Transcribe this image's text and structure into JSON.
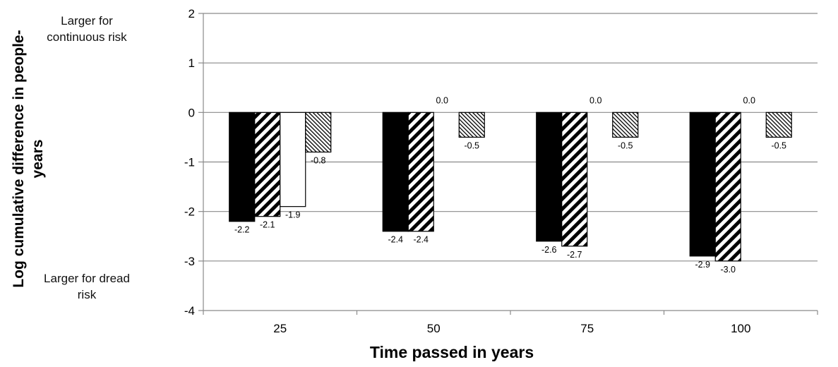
{
  "chart_data": {
    "type": "bar",
    "title": "",
    "xlabel": "Time passed in years",
    "ylabel": "Log cumulative difference in people-years",
    "annotations": {
      "top": "Larger for continuous risk",
      "bottom": "Larger for dread risk"
    },
    "categories": [
      "25",
      "50",
      "75",
      "100"
    ],
    "ylim": [
      -4,
      2
    ],
    "yticks": [
      2,
      1,
      0,
      -1,
      -2,
      -3,
      -4
    ],
    "grid": true,
    "legend": "none",
    "series": [
      {
        "values": [
          -2.2,
          -2.4,
          -2.6,
          -2.9
        ],
        "labels": [
          "-2.2",
          "-2.4",
          "-2.6",
          "-2.9"
        ],
        "fill": "solid-black"
      },
      {
        "values": [
          -2.1,
          -2.4,
          -2.7,
          -3.0
        ],
        "labels": [
          "-2.1",
          "-2.4",
          "-2.7",
          "-3.0"
        ],
        "fill": "thick-diagonal-hatch"
      },
      {
        "values": [
          -1.9,
          0.0,
          0.0,
          0.0
        ],
        "labels": [
          "-1.9",
          "0.0",
          "0.0",
          "0.0"
        ],
        "fill": "white"
      },
      {
        "values": [
          -0.8,
          -0.5,
          -0.5,
          -0.5
        ],
        "labels": [
          "-0.8",
          "-0.5",
          "-0.5",
          "-0.5"
        ],
        "fill": "thin-diagonal-hatch"
      }
    ]
  }
}
